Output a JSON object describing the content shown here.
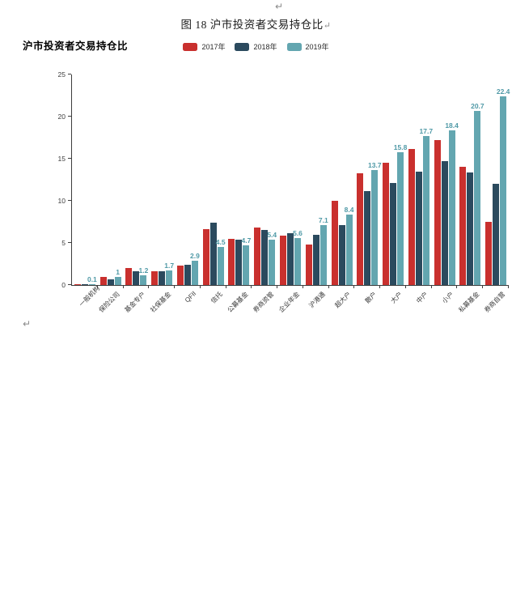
{
  "page": {
    "top_return_mark": "↵",
    "bottom_return_mark": "↵",
    "caption": "图 18  沪市投资者交易持仓比",
    "caption_return_mark": "↵",
    "chart_heading": "沪市投资者交易持仓比"
  },
  "colors": {
    "series_2017": "#c9302e",
    "series_2018": "#2b4a5e",
    "series_2019": "#63a6b0",
    "value_label": "#4f99a6",
    "axis": "#3d3d3d"
  },
  "chart_data": {
    "type": "bar",
    "title": "沪市投资者交易持仓比",
    "categories": [
      "一般机构",
      "保险公司",
      "基金专户",
      "社保基金",
      "QFII",
      "信托",
      "公募基金",
      "券商资管",
      "企业年金",
      "沪港通",
      "超大户",
      "散户",
      "大户",
      "中户",
      "小户",
      "私募基金",
      "券商自营"
    ],
    "series": [
      {
        "name": "2017年",
        "color": "#c9302e",
        "values": [
          0.1,
          1.0,
          2.0,
          1.6,
          2.3,
          6.6,
          5.5,
          6.8,
          5.9,
          4.8,
          10.0,
          13.3,
          14.5,
          16.2,
          17.2,
          14.0,
          7.5
        ]
      },
      {
        "name": "2018年",
        "color": "#2b4a5e",
        "values": [
          0.1,
          0.7,
          1.6,
          1.6,
          2.4,
          7.4,
          5.4,
          6.5,
          6.2,
          6.0,
          7.1,
          11.2,
          12.1,
          13.5,
          14.7,
          13.4,
          12.0
        ]
      },
      {
        "name": "2019年",
        "color": "#63a6b0",
        "values": [
          0.1,
          1.0,
          1.2,
          1.7,
          2.9,
          4.5,
          4.7,
          5.4,
          5.6,
          7.1,
          8.4,
          13.7,
          15.8,
          17.7,
          18.4,
          20.7,
          22.4
        ],
        "value_labels": [
          "0.1",
          "1",
          "1.2",
          "1.7",
          "2.9",
          "4.5",
          "4.7",
          "5.4",
          "5.6",
          "7.1",
          "8.4",
          "13.7",
          "15.8",
          "17.7",
          "18.4",
          "20.7",
          "22.4"
        ]
      }
    ],
    "labeled_series": "2019年",
    "xlabel": "",
    "ylabel": "",
    "ylim": [
      0,
      25
    ],
    "yticks": [
      0,
      5,
      10,
      15,
      20,
      25
    ],
    "grid": false,
    "legend_position": "top-center"
  }
}
